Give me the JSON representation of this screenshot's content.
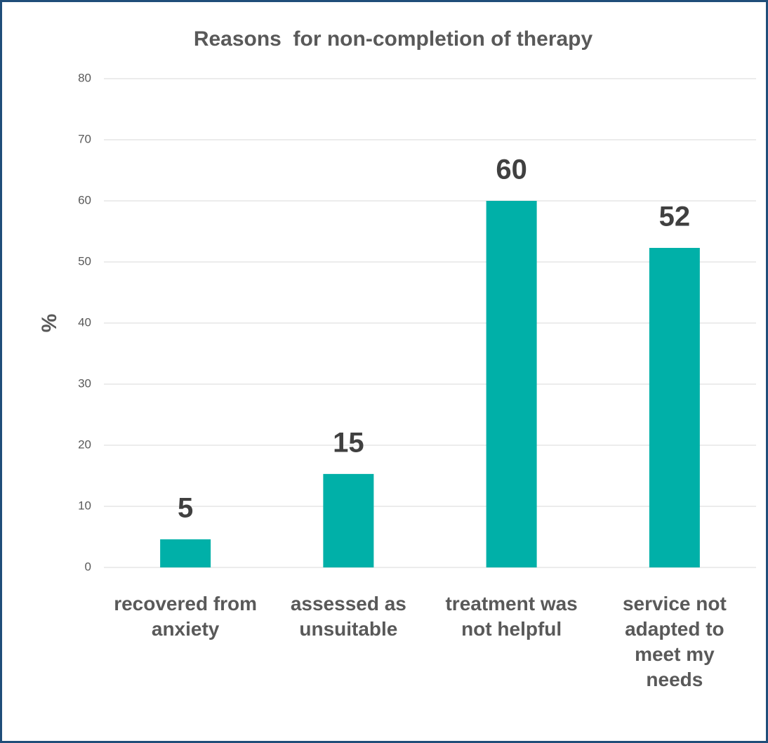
{
  "chart_data": {
    "type": "bar",
    "title": "Reasons  for non-completion of therapy",
    "ylabel": "%",
    "categories": [
      "recovered from anxiety",
      "assessed as unsuitable",
      "treatment was not helpful",
      "service not adapted to meet my needs"
    ],
    "values": [
      4.6,
      15.3,
      60,
      52.3
    ],
    "value_labels": [
      "5",
      "15",
      "60",
      "52"
    ],
    "color": "#00b0a8",
    "ylim": [
      0,
      80
    ],
    "yticks": [
      0,
      10,
      20,
      30,
      40,
      50,
      60,
      70,
      80
    ],
    "grid": true
  }
}
